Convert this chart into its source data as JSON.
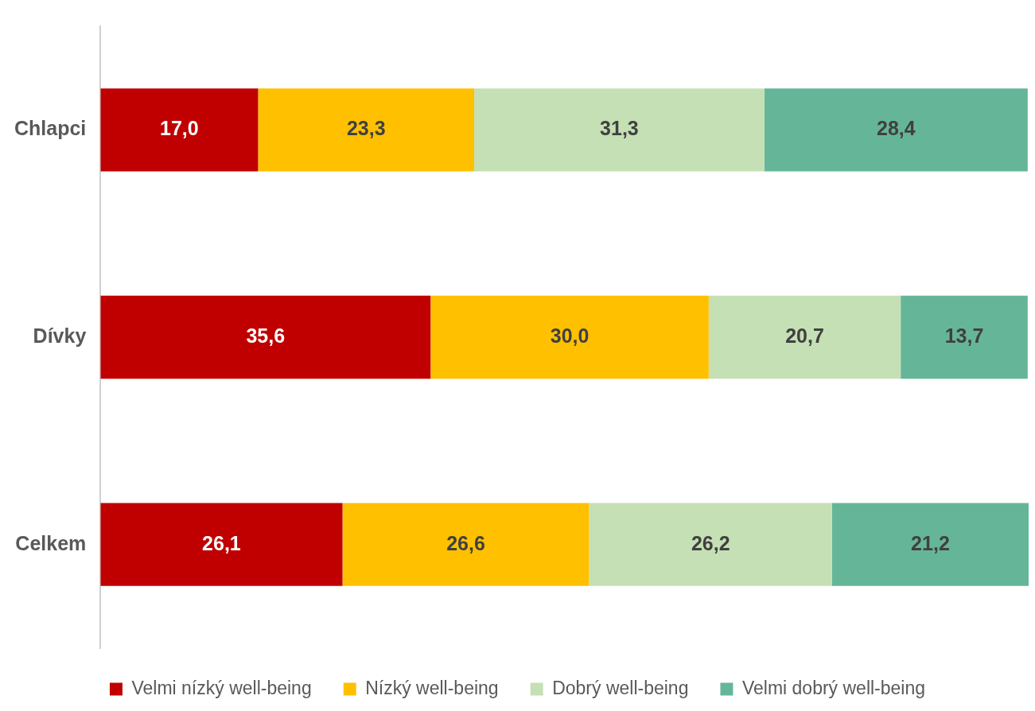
{
  "chart_data": {
    "type": "bar",
    "orientation": "horizontal",
    "stacked": true,
    "legend": "bottom",
    "categories": [
      "Chlapci",
      "Dívky",
      "Celkem"
    ],
    "series": [
      {
        "name": "Velmi nízký well-being",
        "color": "#c00000",
        "values": [
          17.0,
          35.6,
          26.1
        ],
        "value_labels": [
          "17,0",
          "35,6",
          "26,1"
        ]
      },
      {
        "name": "Nízký well-being",
        "color": "#ffc000",
        "values": [
          23.3,
          30.0,
          26.6
        ],
        "value_labels": [
          "23,3",
          "30,0",
          "26,6"
        ]
      },
      {
        "name": "Dobrý well-being",
        "color": "#c5e0b4",
        "values": [
          31.3,
          20.7,
          26.2
        ],
        "value_labels": [
          "31,3",
          "20,7",
          "26,2"
        ]
      },
      {
        "name": "Velmi dobrý well-being",
        "color": "#65b699",
        "values": [
          28.4,
          13.7,
          21.2
        ],
        "value_labels": [
          "28,4",
          "13,7",
          "21,2"
        ]
      }
    ]
  }
}
